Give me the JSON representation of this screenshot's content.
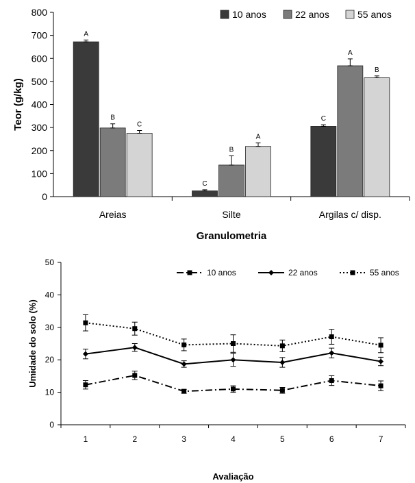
{
  "chart_data": [
    {
      "type": "bar",
      "title": "",
      "xlabel": "Granulometria",
      "ylabel": "Teor (g/kg)",
      "ylim": [
        0,
        800
      ],
      "yticks": [
        0,
        100,
        200,
        300,
        400,
        500,
        600,
        700,
        800
      ],
      "categories": [
        "Areias",
        "Silte",
        "Argilas c/ disp."
      ],
      "legend_position": "top-right",
      "grid": false,
      "series": [
        {
          "name": "10 anos",
          "color": "#3a3a3a",
          "values": [
            672,
            25,
            305
          ],
          "errors": [
            8,
            5,
            7
          ],
          "letters": [
            "A",
            "C",
            "C"
          ]
        },
        {
          "name": "22 anos",
          "color": "#7b7b7b",
          "values": [
            298,
            137,
            568
          ],
          "errors": [
            18,
            40,
            30
          ],
          "letters": [
            "B",
            "B",
            "A"
          ]
        },
        {
          "name": "55 anos",
          "color": "#d4d4d4",
          "values": [
            275,
            218,
            516
          ],
          "errors": [
            12,
            15,
            8
          ],
          "letters": [
            "C",
            "A",
            "B"
          ]
        }
      ]
    },
    {
      "type": "line",
      "title": "",
      "xlabel": "Avaliação",
      "ylabel": "Umidade do solo (%)",
      "x": [
        1,
        2,
        3,
        4,
        5,
        6,
        7
      ],
      "ylim": [
        0,
        50
      ],
      "yticks": [
        0,
        10,
        20,
        30,
        40,
        50
      ],
      "legend_position": "top",
      "grid": false,
      "series": [
        {
          "name": "10 anos",
          "style": "dash-dot",
          "marker": "square",
          "values": [
            12.3,
            15.2,
            10.3,
            11.0,
            10.6,
            13.6,
            12.0
          ],
          "errors": [
            1.3,
            1.3,
            0.6,
            1.0,
            0.9,
            1.5,
            1.5
          ]
        },
        {
          "name": "22 anos",
          "style": "solid",
          "marker": "diamond",
          "values": [
            21.8,
            23.8,
            18.7,
            20.0,
            19.2,
            22.1,
            19.5
          ],
          "errors": [
            1.5,
            1.2,
            1.0,
            2.0,
            1.5,
            1.5,
            1.3
          ]
        },
        {
          "name": "55 anos",
          "style": "dotted",
          "marker": "square",
          "values": [
            31.4,
            29.6,
            24.6,
            25.0,
            24.3,
            27.1,
            24.5
          ],
          "errors": [
            2.5,
            2.0,
            1.8,
            2.7,
            1.8,
            2.3,
            2.3
          ]
        }
      ]
    }
  ]
}
